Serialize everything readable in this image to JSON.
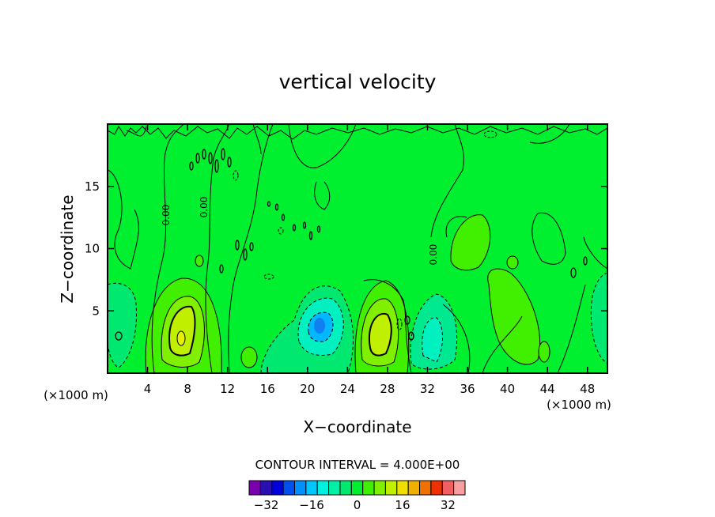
{
  "chart_data": {
    "type": "heatmap",
    "title": "vertical velocity",
    "xlabel": "X−coordinate",
    "ylabel": "Z−coordinate",
    "x_unit_left": "(×1000 m)",
    "x_unit_right": "(×1000 m)",
    "xlim": [
      0,
      50
    ],
    "ylim": [
      0,
      20
    ],
    "x_ticks": [
      4,
      8,
      12,
      16,
      20,
      24,
      28,
      32,
      36,
      40,
      44,
      48
    ],
    "x_tick_labels": [
      "4",
      "8",
      "12",
      "16",
      "20",
      "24",
      "28",
      "32",
      "36",
      "40",
      "44",
      "48"
    ],
    "y_ticks": [
      5,
      10,
      15
    ],
    "y_tick_labels": [
      "5",
      "10",
      "15"
    ],
    "contour_interval_label": "CONTOUR INTERVAL = 4.000E+00",
    "contour_interval": 4,
    "contour_zero_labels": [
      "0.00",
      "0.00",
      "0.00"
    ],
    "colorbar": {
      "levels": [
        -36,
        -32,
        -28,
        -24,
        -20,
        -16,
        -12,
        -8,
        -4,
        0,
        4,
        8,
        12,
        16,
        20,
        24,
        28,
        32,
        36
      ],
      "colors": [
        "#7a00b0",
        "#2a10b0",
        "#0000d8",
        "#0050f0",
        "#0090ff",
        "#00c8ff",
        "#00f0e0",
        "#00f0a8",
        "#00e870",
        "#00f030",
        "#40f000",
        "#80f000",
        "#c0f000",
        "#f0e000",
        "#f0b000",
        "#f07000",
        "#f03000",
        "#f06060",
        "#f8a0a0"
      ],
      "tick_values": [
        -32,
        -16,
        0,
        16,
        32
      ],
      "tick_labels": [
        "−32",
        "−16",
        "0",
        "16",
        "32"
      ]
    },
    "features": [
      {
        "kind": "updraft",
        "x": 7.5,
        "z": 3.0,
        "peak": 12
      },
      {
        "kind": "downdraft",
        "x": 21.5,
        "z": 3.8,
        "peak": -20
      },
      {
        "kind": "updraft",
        "x": 27.5,
        "z": 3.0,
        "peak": 12
      },
      {
        "kind": "downdraft",
        "x": 32.0,
        "z": 3.5,
        "peak": -8
      },
      {
        "kind": "updraft",
        "x": 36.0,
        "z": 10.5,
        "peak": 4
      },
      {
        "kind": "updraft",
        "x": 40.5,
        "z": 6.0,
        "peak": 4
      },
      {
        "kind": "downdraft",
        "x": 49.0,
        "z": 4.5,
        "peak": -4
      }
    ]
  }
}
